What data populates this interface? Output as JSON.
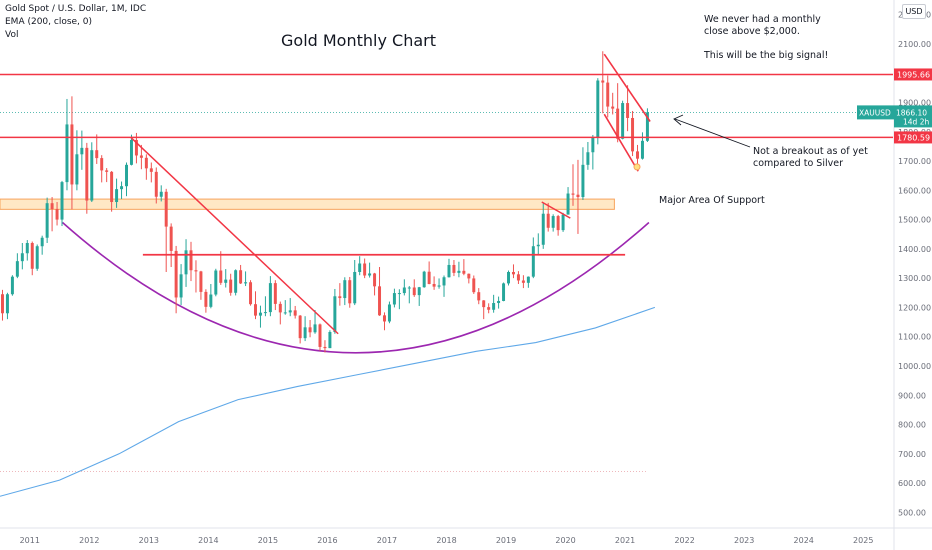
{
  "header": {
    "symbol_line": "Gold Spot / U.S. Dollar, 1M, IDC",
    "indicator_line": "EMA (200, close, 0)",
    "volume_line": "Vol",
    "currency_badge": "USD"
  },
  "chart_data": {
    "type": "candlestick",
    "title": "Gold Monthly Chart",
    "ylim": [
      450,
      2250
    ],
    "y_ticks": [
      500,
      600,
      700,
      800,
      900,
      1000,
      1100,
      1200,
      1300,
      1400,
      1500,
      1600,
      1700,
      1800,
      1900,
      2000,
      2100,
      2200
    ],
    "x_range": [
      2010.5,
      2025.5
    ],
    "x_ticks": [
      "2011",
      "2012",
      "2013",
      "2014",
      "2015",
      "2016",
      "2017",
      "2018",
      "2019",
      "2020",
      "2021",
      "2022",
      "2023",
      "2024",
      "2025"
    ],
    "colors": {
      "up": "#26a69a",
      "down": "#ef5350",
      "level": "#f23645",
      "support_zone": "#ffe0b2",
      "support_border": "#f7a35c",
      "ema": "#5fa8e8",
      "arc": "#9c27b0",
      "dotted": "#e8a0a6",
      "price_badge": "#26a69a"
    },
    "candles": [
      {
        "t": "2010-07",
        "o": 1245,
        "h": 1260,
        "l": 1155,
        "c": 1180
      },
      {
        "t": "2010-08",
        "o": 1180,
        "h": 1250,
        "l": 1160,
        "c": 1245
      },
      {
        "t": "2010-09",
        "o": 1245,
        "h": 1310,
        "l": 1240,
        "c": 1305
      },
      {
        "t": "2010-10",
        "o": 1305,
        "h": 1385,
        "l": 1300,
        "c": 1358
      },
      {
        "t": "2010-11",
        "o": 1358,
        "h": 1420,
        "l": 1330,
        "c": 1385
      },
      {
        "t": "2010-12",
        "o": 1385,
        "h": 1430,
        "l": 1360,
        "c": 1420
      },
      {
        "t": "2011-01",
        "o": 1420,
        "h": 1425,
        "l": 1310,
        "c": 1332
      },
      {
        "t": "2011-02",
        "o": 1332,
        "h": 1415,
        "l": 1325,
        "c": 1409
      },
      {
        "t": "2011-03",
        "o": 1409,
        "h": 1445,
        "l": 1380,
        "c": 1438
      },
      {
        "t": "2011-04",
        "o": 1438,
        "h": 1575,
        "l": 1420,
        "c": 1556
      },
      {
        "t": "2011-05",
        "o": 1556,
        "h": 1577,
        "l": 1460,
        "c": 1536
      },
      {
        "t": "2011-06",
        "o": 1536,
        "h": 1560,
        "l": 1480,
        "c": 1500
      },
      {
        "t": "2011-07",
        "o": 1500,
        "h": 1632,
        "l": 1478,
        "c": 1628
      },
      {
        "t": "2011-08",
        "o": 1628,
        "h": 1912,
        "l": 1600,
        "c": 1825
      },
      {
        "t": "2011-09",
        "o": 1825,
        "h": 1921,
        "l": 1535,
        "c": 1620
      },
      {
        "t": "2011-10",
        "o": 1620,
        "h": 1805,
        "l": 1600,
        "c": 1723
      },
      {
        "t": "2011-11",
        "o": 1723,
        "h": 1804,
        "l": 1670,
        "c": 1745
      },
      {
        "t": "2011-12",
        "o": 1745,
        "h": 1762,
        "l": 1520,
        "c": 1565
      },
      {
        "t": "2012-01",
        "o": 1565,
        "h": 1764,
        "l": 1560,
        "c": 1737
      },
      {
        "t": "2012-02",
        "o": 1737,
        "h": 1791,
        "l": 1690,
        "c": 1710
      },
      {
        "t": "2012-03",
        "o": 1710,
        "h": 1720,
        "l": 1627,
        "c": 1668
      },
      {
        "t": "2012-04",
        "o": 1668,
        "h": 1676,
        "l": 1628,
        "c": 1663
      },
      {
        "t": "2012-05",
        "o": 1663,
        "h": 1666,
        "l": 1527,
        "c": 1560
      },
      {
        "t": "2012-06",
        "o": 1560,
        "h": 1640,
        "l": 1540,
        "c": 1604
      },
      {
        "t": "2012-07",
        "o": 1604,
        "h": 1630,
        "l": 1570,
        "c": 1614
      },
      {
        "t": "2012-08",
        "o": 1614,
        "h": 1695,
        "l": 1580,
        "c": 1687
      },
      {
        "t": "2012-09",
        "o": 1687,
        "h": 1790,
        "l": 1685,
        "c": 1772
      },
      {
        "t": "2012-10",
        "o": 1772,
        "h": 1796,
        "l": 1692,
        "c": 1719
      },
      {
        "t": "2012-11",
        "o": 1719,
        "h": 1755,
        "l": 1672,
        "c": 1711
      },
      {
        "t": "2012-12",
        "o": 1711,
        "h": 1723,
        "l": 1636,
        "c": 1675
      },
      {
        "t": "2013-01",
        "o": 1675,
        "h": 1695,
        "l": 1627,
        "c": 1663
      },
      {
        "t": "2013-02",
        "o": 1663,
        "h": 1678,
        "l": 1555,
        "c": 1578
      },
      {
        "t": "2013-03",
        "o": 1578,
        "h": 1617,
        "l": 1562,
        "c": 1595
      },
      {
        "t": "2013-04",
        "o": 1595,
        "h": 1605,
        "l": 1321,
        "c": 1476
      },
      {
        "t": "2013-05",
        "o": 1476,
        "h": 1487,
        "l": 1338,
        "c": 1393
      },
      {
        "t": "2013-06",
        "o": 1393,
        "h": 1410,
        "l": 1180,
        "c": 1234
      },
      {
        "t": "2013-07",
        "o": 1234,
        "h": 1348,
        "l": 1208,
        "c": 1313
      },
      {
        "t": "2013-08",
        "o": 1313,
        "h": 1433,
        "l": 1270,
        "c": 1395
      },
      {
        "t": "2013-09",
        "o": 1395,
        "h": 1424,
        "l": 1290,
        "c": 1327
      },
      {
        "t": "2013-10",
        "o": 1327,
        "h": 1361,
        "l": 1251,
        "c": 1323
      },
      {
        "t": "2013-11",
        "o": 1323,
        "h": 1325,
        "l": 1226,
        "c": 1253
      },
      {
        "t": "2013-12",
        "o": 1253,
        "h": 1262,
        "l": 1182,
        "c": 1202
      },
      {
        "t": "2014-01",
        "o": 1202,
        "h": 1280,
        "l": 1197,
        "c": 1244
      },
      {
        "t": "2014-02",
        "o": 1244,
        "h": 1332,
        "l": 1238,
        "c": 1326
      },
      {
        "t": "2014-03",
        "o": 1326,
        "h": 1392,
        "l": 1277,
        "c": 1284
      },
      {
        "t": "2014-04",
        "o": 1284,
        "h": 1331,
        "l": 1268,
        "c": 1295
      },
      {
        "t": "2014-05",
        "o": 1295,
        "h": 1315,
        "l": 1240,
        "c": 1250
      },
      {
        "t": "2014-06",
        "o": 1250,
        "h": 1330,
        "l": 1241,
        "c": 1327
      },
      {
        "t": "2014-07",
        "o": 1327,
        "h": 1345,
        "l": 1280,
        "c": 1282
      },
      {
        "t": "2014-08",
        "o": 1282,
        "h": 1323,
        "l": 1273,
        "c": 1286
      },
      {
        "t": "2014-09",
        "o": 1286,
        "h": 1293,
        "l": 1206,
        "c": 1211
      },
      {
        "t": "2014-10",
        "o": 1211,
        "h": 1255,
        "l": 1160,
        "c": 1172
      },
      {
        "t": "2014-11",
        "o": 1172,
        "h": 1206,
        "l": 1131,
        "c": 1182
      },
      {
        "t": "2014-12",
        "o": 1182,
        "h": 1238,
        "l": 1170,
        "c": 1184
      },
      {
        "t": "2015-01",
        "o": 1184,
        "h": 1307,
        "l": 1170,
        "c": 1283
      },
      {
        "t": "2015-02",
        "o": 1283,
        "h": 1293,
        "l": 1191,
        "c": 1212
      },
      {
        "t": "2015-03",
        "o": 1212,
        "h": 1220,
        "l": 1142,
        "c": 1183
      },
      {
        "t": "2015-04",
        "o": 1183,
        "h": 1225,
        "l": 1175,
        "c": 1183
      },
      {
        "t": "2015-05",
        "o": 1183,
        "h": 1232,
        "l": 1170,
        "c": 1190
      },
      {
        "t": "2015-06",
        "o": 1190,
        "h": 1205,
        "l": 1162,
        "c": 1172
      },
      {
        "t": "2015-07",
        "o": 1172,
        "h": 1174,
        "l": 1077,
        "c": 1095
      },
      {
        "t": "2015-08",
        "o": 1095,
        "h": 1170,
        "l": 1085,
        "c": 1132
      },
      {
        "t": "2015-09",
        "o": 1132,
        "h": 1157,
        "l": 1098,
        "c": 1115
      },
      {
        "t": "2015-10",
        "o": 1115,
        "h": 1191,
        "l": 1110,
        "c": 1142
      },
      {
        "t": "2015-11",
        "o": 1142,
        "h": 1145,
        "l": 1052,
        "c": 1065
      },
      {
        "t": "2015-12",
        "o": 1065,
        "h": 1088,
        "l": 1046,
        "c": 1061
      },
      {
        "t": "2016-01",
        "o": 1061,
        "h": 1122,
        "l": 1061,
        "c": 1116
      },
      {
        "t": "2016-02",
        "o": 1116,
        "h": 1263,
        "l": 1110,
        "c": 1238
      },
      {
        "t": "2016-03",
        "o": 1238,
        "h": 1283,
        "l": 1206,
        "c": 1232
      },
      {
        "t": "2016-04",
        "o": 1232,
        "h": 1303,
        "l": 1208,
        "c": 1293
      },
      {
        "t": "2016-05",
        "o": 1293,
        "h": 1304,
        "l": 1199,
        "c": 1214
      },
      {
        "t": "2016-06",
        "o": 1214,
        "h": 1362,
        "l": 1208,
        "c": 1321
      },
      {
        "t": "2016-07",
        "o": 1321,
        "h": 1375,
        "l": 1310,
        "c": 1350
      },
      {
        "t": "2016-08",
        "o": 1350,
        "h": 1367,
        "l": 1300,
        "c": 1309
      },
      {
        "t": "2016-09",
        "o": 1309,
        "h": 1353,
        "l": 1302,
        "c": 1316
      },
      {
        "t": "2016-10",
        "o": 1316,
        "h": 1318,
        "l": 1241,
        "c": 1272
      },
      {
        "t": "2016-11",
        "o": 1272,
        "h": 1338,
        "l": 1171,
        "c": 1173
      },
      {
        "t": "2016-12",
        "o": 1173,
        "h": 1183,
        "l": 1122,
        "c": 1152
      },
      {
        "t": "2017-01",
        "o": 1152,
        "h": 1220,
        "l": 1146,
        "c": 1210
      },
      {
        "t": "2017-02",
        "o": 1210,
        "h": 1264,
        "l": 1200,
        "c": 1249
      },
      {
        "t": "2017-03",
        "o": 1249,
        "h": 1262,
        "l": 1194,
        "c": 1249
      },
      {
        "t": "2017-04",
        "o": 1249,
        "h": 1296,
        "l": 1241,
        "c": 1268
      },
      {
        "t": "2017-05",
        "o": 1268,
        "h": 1273,
        "l": 1214,
        "c": 1268
      },
      {
        "t": "2017-06",
        "o": 1268,
        "h": 1296,
        "l": 1236,
        "c": 1242
      },
      {
        "t": "2017-07",
        "o": 1242,
        "h": 1270,
        "l": 1205,
        "c": 1269
      },
      {
        "t": "2017-08",
        "o": 1269,
        "h": 1325,
        "l": 1267,
        "c": 1322
      },
      {
        "t": "2017-09",
        "o": 1322,
        "h": 1357,
        "l": 1279,
        "c": 1280
      },
      {
        "t": "2017-10",
        "o": 1280,
        "h": 1306,
        "l": 1260,
        "c": 1271
      },
      {
        "t": "2017-11",
        "o": 1271,
        "h": 1299,
        "l": 1264,
        "c": 1275
      },
      {
        "t": "2017-12",
        "o": 1275,
        "h": 1309,
        "l": 1236,
        "c": 1303
      },
      {
        "t": "2018-01",
        "o": 1303,
        "h": 1366,
        "l": 1302,
        "c": 1345
      },
      {
        "t": "2018-02",
        "o": 1345,
        "h": 1362,
        "l": 1307,
        "c": 1318
      },
      {
        "t": "2018-03",
        "o": 1318,
        "h": 1356,
        "l": 1303,
        "c": 1325
      },
      {
        "t": "2018-04",
        "o": 1325,
        "h": 1365,
        "l": 1310,
        "c": 1315
      },
      {
        "t": "2018-05",
        "o": 1315,
        "h": 1316,
        "l": 1282,
        "c": 1299
      },
      {
        "t": "2018-06",
        "o": 1299,
        "h": 1309,
        "l": 1246,
        "c": 1252
      },
      {
        "t": "2018-07",
        "o": 1252,
        "h": 1266,
        "l": 1211,
        "c": 1224
      },
      {
        "t": "2018-08",
        "o": 1224,
        "h": 1225,
        "l": 1160,
        "c": 1201
      },
      {
        "t": "2018-09",
        "o": 1201,
        "h": 1214,
        "l": 1180,
        "c": 1192
      },
      {
        "t": "2018-10",
        "o": 1192,
        "h": 1243,
        "l": 1182,
        "c": 1215
      },
      {
        "t": "2018-11",
        "o": 1215,
        "h": 1237,
        "l": 1196,
        "c": 1222
      },
      {
        "t": "2018-12",
        "o": 1222,
        "h": 1285,
        "l": 1221,
        "c": 1282
      },
      {
        "t": "2019-01",
        "o": 1282,
        "h": 1326,
        "l": 1275,
        "c": 1321
      },
      {
        "t": "2019-02",
        "o": 1321,
        "h": 1347,
        "l": 1300,
        "c": 1313
      },
      {
        "t": "2019-03",
        "o": 1313,
        "h": 1324,
        "l": 1280,
        "c": 1292
      },
      {
        "t": "2019-04",
        "o": 1292,
        "h": 1310,
        "l": 1266,
        "c": 1284
      },
      {
        "t": "2019-05",
        "o": 1284,
        "h": 1306,
        "l": 1267,
        "c": 1305
      },
      {
        "t": "2019-06",
        "o": 1305,
        "h": 1439,
        "l": 1300,
        "c": 1409
      },
      {
        "t": "2019-07",
        "o": 1409,
        "h": 1453,
        "l": 1382,
        "c": 1414
      },
      {
        "t": "2019-08",
        "o": 1414,
        "h": 1555,
        "l": 1400,
        "c": 1520
      },
      {
        "t": "2019-09",
        "o": 1520,
        "h": 1557,
        "l": 1459,
        "c": 1472
      },
      {
        "t": "2019-10",
        "o": 1472,
        "h": 1518,
        "l": 1459,
        "c": 1512
      },
      {
        "t": "2019-11",
        "o": 1512,
        "h": 1516,
        "l": 1445,
        "c": 1464
      },
      {
        "t": "2019-12",
        "o": 1464,
        "h": 1523,
        "l": 1458,
        "c": 1517
      },
      {
        "t": "2020-01",
        "o": 1517,
        "h": 1611,
        "l": 1517,
        "c": 1589
      },
      {
        "t": "2020-02",
        "o": 1589,
        "h": 1689,
        "l": 1547,
        "c": 1585
      },
      {
        "t": "2020-03",
        "o": 1585,
        "h": 1704,
        "l": 1451,
        "c": 1577
      },
      {
        "t": "2020-04",
        "o": 1577,
        "h": 1747,
        "l": 1567,
        "c": 1687
      },
      {
        "t": "2020-05",
        "o": 1687,
        "h": 1765,
        "l": 1670,
        "c": 1730
      },
      {
        "t": "2020-06",
        "o": 1730,
        "h": 1789,
        "l": 1671,
        "c": 1781
      },
      {
        "t": "2020-07",
        "o": 1781,
        "h": 1983,
        "l": 1757,
        "c": 1975
      },
      {
        "t": "2020-08",
        "o": 1975,
        "h": 2075,
        "l": 1863,
        "c": 1968
      },
      {
        "t": "2020-09",
        "o": 1968,
        "h": 1992,
        "l": 1849,
        "c": 1886
      },
      {
        "t": "2020-10",
        "o": 1886,
        "h": 1933,
        "l": 1859,
        "c": 1879
      },
      {
        "t": "2020-11",
        "o": 1879,
        "h": 1966,
        "l": 1764,
        "c": 1776
      },
      {
        "t": "2020-12",
        "o": 1776,
        "h": 1906,
        "l": 1774,
        "c": 1898
      },
      {
        "t": "2021-01",
        "o": 1898,
        "h": 1959,
        "l": 1802,
        "c": 1847
      },
      {
        "t": "2021-02",
        "o": 1847,
        "h": 1871,
        "l": 1717,
        "c": 1733
      },
      {
        "t": "2021-03",
        "o": 1733,
        "h": 1755,
        "l": 1677,
        "c": 1708
      },
      {
        "t": "2021-04",
        "o": 1708,
        "h": 1798,
        "l": 1705,
        "c": 1769
      },
      {
        "t": "2021-05",
        "o": 1769,
        "h": 1880,
        "l": 1765,
        "c": 1866
      }
    ],
    "ema200": [
      [
        2010.5,
        555
      ],
      [
        2011.5,
        610
      ],
      [
        2012.5,
        700
      ],
      [
        2013.5,
        810
      ],
      [
        2014.5,
        885
      ],
      [
        2015.5,
        930
      ],
      [
        2016.5,
        970
      ],
      [
        2017.5,
        1010
      ],
      [
        2018.5,
        1050
      ],
      [
        2019.5,
        1080
      ],
      [
        2020.5,
        1130
      ],
      [
        2021.5,
        1200
      ]
    ],
    "levels": [
      {
        "price": 1995.66,
        "label": "1995.66"
      },
      {
        "price": 1780.59,
        "label": "1780.59"
      },
      {
        "price": 1380,
        "from": 2012.9,
        "to": 2021.0,
        "label": ""
      }
    ],
    "support_zone": {
      "low": 1535,
      "high": 1570,
      "label": "Major Area Of Support"
    },
    "dotted_line": {
      "price": 1866.1
    },
    "dotted_floor": {
      "price": 640
    },
    "trendlines": [
      {
        "from": [
          2012.7,
          1780
        ],
        "to": [
          2016.18,
          1110
        ]
      },
      {
        "from": [
          2019.6,
          1560
        ],
        "to": [
          2020.08,
          1505
        ]
      }
    ],
    "wedge_lines": [
      {
        "from": [
          2020.65,
          2065
        ],
        "to": [
          2021.42,
          1835
        ]
      },
      {
        "from": [
          2020.65,
          1860
        ],
        "to": [
          2021.22,
          1665
        ]
      }
    ],
    "arc": {
      "x0": 2011.55,
      "x1": 2021.4,
      "y_start": 1490,
      "y_end": 1490,
      "y_min": 1045
    },
    "marker": {
      "t": 2021.2,
      "price": 1680
    },
    "price_badge": {
      "symbol": "XAUUSD",
      "price": "1866.10",
      "countdown": "14d 2h"
    },
    "annotations": {
      "note_top": "We never had a monthly\nclose above $2,000.\n\nThis will be the big signal!",
      "note_right": "Not a breakout as of yet\ncompared to Silver",
      "note_support": "Major Area Of Support"
    }
  }
}
